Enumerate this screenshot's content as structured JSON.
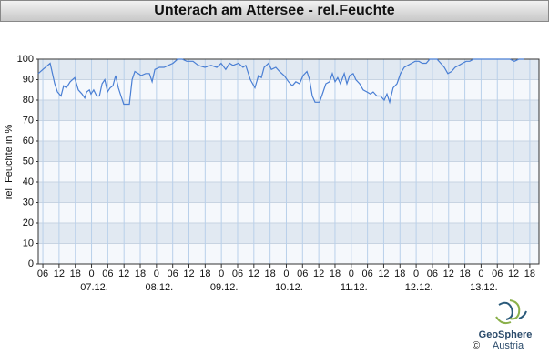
{
  "chart_data": {
    "type": "line",
    "title": "Unterach am Attersee - rel.Feuchte",
    "y_label": "rel. Feuchte in %",
    "xlim": [
      4.3,
      189.4
    ],
    "ylim": [
      0,
      100
    ],
    "yticks": [
      0,
      10,
      20,
      30,
      40,
      50,
      60,
      70,
      80,
      90,
      100
    ],
    "xticks": [
      {
        "value": 6,
        "label": "06"
      },
      12,
      18,
      {
        "value": 24,
        "label": "0"
      },
      {
        "value": 30,
        "label": "06"
      },
      {
        "value": 36,
        "label": "12"
      },
      {
        "value": 42,
        "label": "18"
      },
      {
        "value": 48,
        "label": "0"
      },
      {
        "value": 54,
        "label": "06"
      },
      {
        "value": 60,
        "label": "12"
      },
      {
        "value": 66,
        "label": "18"
      },
      {
        "value": 72,
        "label": "0"
      },
      {
        "value": 78,
        "label": "06"
      },
      {
        "value": 84,
        "label": "12"
      },
      {
        "value": 90,
        "label": "18"
      },
      {
        "value": 96,
        "label": "0"
      },
      {
        "value": 102,
        "label": "06"
      },
      {
        "value": 108,
        "label": "12"
      },
      {
        "value": 114,
        "label": "18"
      },
      {
        "value": 120,
        "label": "0"
      },
      {
        "value": 126,
        "label": "06"
      },
      {
        "value": 132,
        "label": "12"
      },
      {
        "value": 138,
        "label": "18"
      },
      {
        "value": 144,
        "label": "0"
      },
      {
        "value": 150,
        "label": "06"
      },
      {
        "value": 156,
        "label": "12"
      },
      {
        "value": 162,
        "label": "18"
      },
      {
        "value": 168,
        "label": "0"
      },
      {
        "value": 174,
        "label": "06"
      },
      {
        "value": 180,
        "label": "12"
      },
      {
        "value": 186,
        "label": "18"
      }
    ],
    "day_labels": [
      {
        "value": 24,
        "label": "07.12."
      },
      {
        "value": 48,
        "label": "08.12."
      },
      {
        "value": 72,
        "label": "09.12."
      },
      {
        "value": 96,
        "label": "10.12."
      },
      {
        "value": 120,
        "label": "11.12."
      },
      {
        "value": 144,
        "label": "12.12."
      },
      {
        "value": 168,
        "label": "13.12."
      }
    ],
    "grid": true,
    "series": [
      {
        "color": "#4a7fd4",
        "x": [
          4.3,
          6,
          8.7,
          10.4,
          11.4,
          12.7,
          13.7,
          14.7,
          16.1,
          17.8,
          19.1,
          20.5,
          21.5,
          22.2,
          23.2,
          23.8,
          24.8,
          25.9,
          26.9,
          27.9,
          28.9,
          29.9,
          30.9,
          31.9,
          32.9,
          33.9,
          34.9,
          35.9,
          38.0,
          39.0,
          40.0,
          41.3,
          42.3,
          44.0,
          45.4,
          46.4,
          47.4,
          49.1,
          50.8,
          52.4,
          54.1,
          55.8,
          57.5,
          59.2,
          61.5,
          63.5,
          65.9,
          68.2,
          70.3,
          71.9,
          73.6,
          75.0,
          76.3,
          78.3,
          80.0,
          81.0,
          82.7,
          84.4,
          85.7,
          86.8,
          87.8,
          89.4,
          90.5,
          92.1,
          93.5,
          95.2,
          96.8,
          98.2,
          99.5,
          100.9,
          102.2,
          103.6,
          104.6,
          105.6,
          106.6,
          108.3,
          109.6,
          110.6,
          112.0,
          113.0,
          114.0,
          115.0,
          116.0,
          117.4,
          118.4,
          119.4,
          120.7,
          121.7,
          123.1,
          124.4,
          125.8,
          127.1,
          128.1,
          129.5,
          130.8,
          132.2,
          133.2,
          134.2,
          135.5,
          136.9,
          138.2,
          139.6,
          140.9,
          142.3,
          143.6,
          145.0,
          146.3,
          147.7,
          149.0,
          150.4,
          151.7,
          153.1,
          154.4,
          155.7,
          157.1,
          158.4,
          159.8,
          161.1,
          162.5,
          163.8,
          165.2,
          166.8,
          168.5,
          178.6,
          180.3,
          182.0,
          183.7
        ],
        "values": [
          93,
          95,
          98,
          88,
          84,
          82,
          87,
          86,
          89,
          91,
          85,
          83,
          81,
          84,
          85,
          83,
          85,
          82,
          82,
          88,
          90,
          84,
          86,
          87,
          92,
          86,
          82,
          78,
          78,
          90,
          94,
          93,
          92,
          93,
          93,
          89,
          95,
          96,
          96,
          97,
          98,
          100,
          100,
          99,
          99,
          97,
          96,
          97,
          96,
          98,
          95,
          98,
          97,
          98,
          96,
          97,
          90,
          86,
          92,
          91,
          96,
          98,
          95,
          96,
          94,
          92,
          89,
          87,
          89,
          88,
          92,
          94,
          90,
          82,
          79,
          79,
          84,
          88,
          89,
          93,
          89,
          91,
          88,
          93,
          88,
          92,
          93,
          90,
          88,
          85,
          84,
          83,
          84,
          82,
          82,
          80,
          83,
          79,
          86,
          88,
          93,
          96,
          97,
          98,
          99,
          99,
          98,
          98,
          100,
          100,
          100,
          98,
          96,
          93,
          94,
          96,
          97,
          98,
          99,
          99,
          100,
          100,
          100,
          100,
          99,
          100,
          100
        ]
      }
    ]
  },
  "footer": {
    "logo_name": "GeoSphere",
    "logo_sub": "Austria",
    "copyright": "©"
  }
}
